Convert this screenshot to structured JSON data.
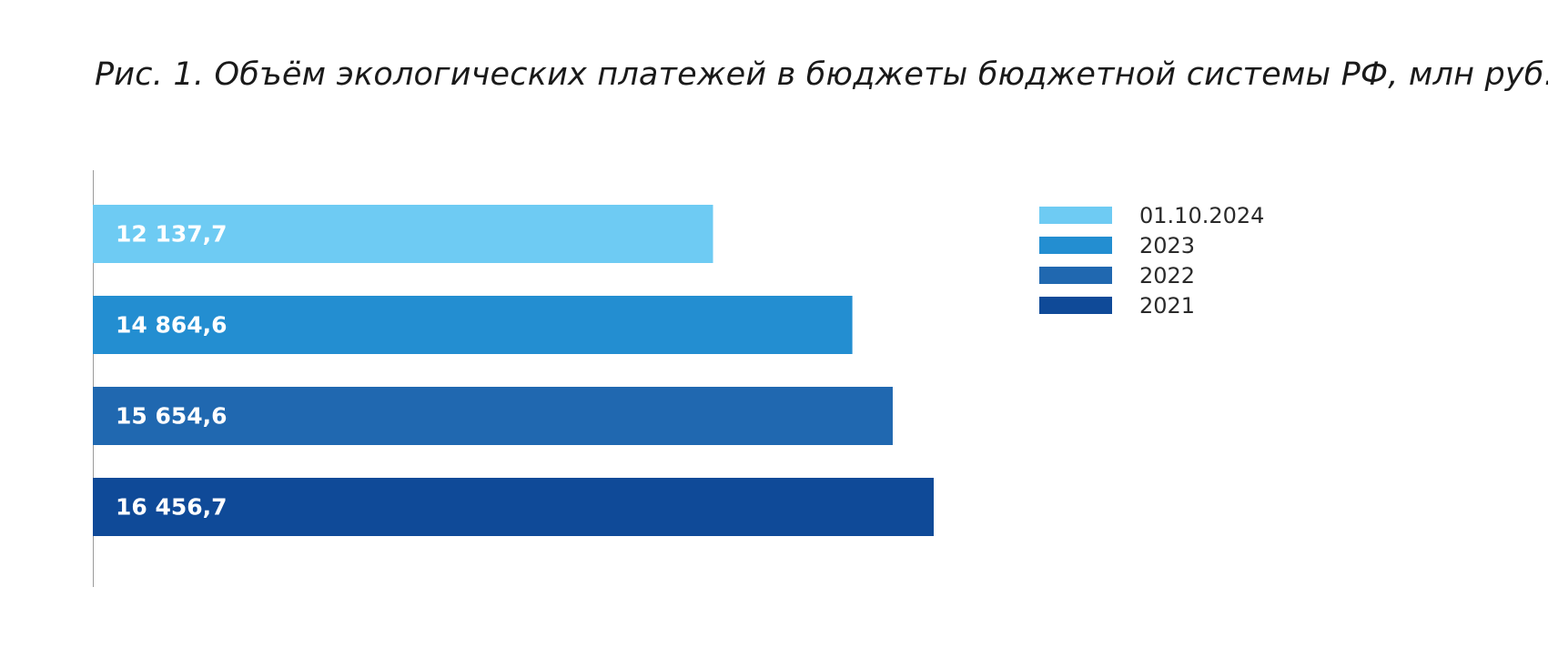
{
  "chart_data": {
    "type": "bar",
    "orientation": "horizontal",
    "title": "Рис. 1. Объём экологических платежей в бюджеты бюджетной системы РФ, млн руб.",
    "categories": [
      "01.10.2024",
      "2023",
      "2022",
      "2021"
    ],
    "values": [
      12137.7,
      14864.6,
      15654.6,
      16456.7
    ],
    "value_labels": [
      "12 137,7",
      "14 864,6",
      "15 654,6",
      "16 456,7"
    ],
    "colors": [
      "#6ecbf3",
      "#238ed1",
      "#2068b0",
      "#0f4a98"
    ],
    "xlim": [
      0,
      16456.7
    ],
    "grid": false,
    "axis_line_color": "#9a9a9a",
    "legend": {
      "position": "right",
      "entries": [
        "01.10.2024",
        "2023",
        "2022",
        "2021"
      ]
    }
  }
}
